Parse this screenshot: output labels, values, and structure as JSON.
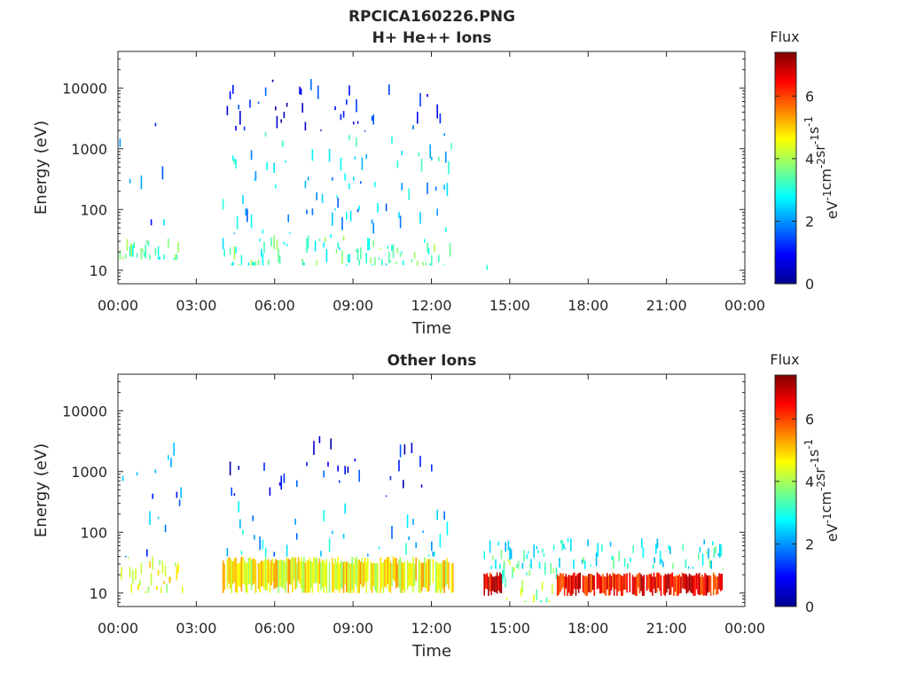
{
  "figure_title": "RPCICA160226.PNG",
  "chart_data": [
    {
      "type": "heatmap",
      "title": "H+ He++ Ions",
      "xlabel": "Time",
      "ylabel": "Energy (eV)",
      "x_ticks": [
        "00:00",
        "03:00",
        "06:00",
        "09:00",
        "12:00",
        "15:00",
        "18:00",
        "21:00",
        "00:00"
      ],
      "x_range_hours": [
        0,
        24
      ],
      "y_scale": "log",
      "y_ticks": [
        "10",
        "100",
        "1000",
        "10000"
      ],
      "y_range_eV": [
        6,
        40000
      ],
      "colorbar": {
        "title": "Flux",
        "unit_label": "eV-1cm-2sr-1s-1",
        "ticks": [
          "0",
          "2",
          "4",
          "6"
        ],
        "range": [
          0,
          7.4
        ],
        "colormap": "jet"
      },
      "grid": false,
      "coverage_hours": [
        [
          0,
          2.5
        ],
        [
          4.0,
          12.85
        ],
        [
          14.05,
          14.15
        ]
      ],
      "features": [
        {
          "t_range_hours": [
            0,
            2.5
          ],
          "e_range_eV": [
            15,
            40
          ],
          "mean_flux": 3.4
        },
        {
          "t_range_hours": [
            0,
            2.5
          ],
          "e_range_eV": [
            40,
            5000
          ],
          "mean_flux": 1.8
        },
        {
          "t_range_hours": [
            4.0,
            12.85
          ],
          "e_range_eV": [
            12,
            40
          ],
          "mean_flux": 3.3
        },
        {
          "t_range_hours": [
            4.0,
            12.85
          ],
          "e_range_eV": [
            40,
            300
          ],
          "mean_flux": 2.3
        },
        {
          "t_range_hours": [
            4.0,
            12.85
          ],
          "e_range_eV": [
            300,
            2000
          ],
          "mean_flux": 2.6
        },
        {
          "t_range_hours": [
            4.0,
            12.85
          ],
          "e_range_eV": [
            2000,
            15000
          ],
          "mean_flux": 1.0
        },
        {
          "t_range_hours": [
            14.05,
            14.15
          ],
          "e_range_eV": [
            8,
            25
          ],
          "mean_flux": 3.0
        }
      ]
    },
    {
      "type": "heatmap",
      "title": "Other Ions",
      "xlabel": "Time",
      "ylabel": "Energy (eV)",
      "x_ticks": [
        "00:00",
        "03:00",
        "06:00",
        "09:00",
        "12:00",
        "15:00",
        "18:00",
        "21:00",
        "00:00"
      ],
      "x_range_hours": [
        0,
        24
      ],
      "y_scale": "log",
      "y_ticks": [
        "10",
        "100",
        "1000",
        "10000"
      ],
      "y_range_eV": [
        6,
        40000
      ],
      "colorbar": {
        "title": "Flux",
        "unit_label": "eV-1cm-2sr-1s-1",
        "ticks": [
          "0",
          "2",
          "4",
          "6"
        ],
        "range": [
          0,
          7.4
        ],
        "colormap": "jet"
      },
      "grid": false,
      "coverage_hours": [
        [
          0,
          2.5
        ],
        [
          4.0,
          12.85
        ],
        [
          14.0,
          23.15
        ]
      ],
      "features": [
        {
          "t_range_hours": [
            0,
            2.5
          ],
          "e_range_eV": [
            10,
            40
          ],
          "mean_flux": 4.5
        },
        {
          "t_range_hours": [
            0,
            2.5
          ],
          "e_range_eV": [
            40,
            3000
          ],
          "mean_flux": 1.8
        },
        {
          "t_range_hours": [
            4.0,
            12.85
          ],
          "e_range_eV": [
            10,
            40
          ],
          "mean_flux": 4.6
        },
        {
          "t_range_hours": [
            4.0,
            12.85
          ],
          "e_range_eV": [
            40,
            400
          ],
          "mean_flux": 2.3
        },
        {
          "t_range_hours": [
            4.0,
            12.85
          ],
          "e_range_eV": [
            400,
            4000
          ],
          "mean_flux": 1.0
        },
        {
          "t_range_hours": [
            14.0,
            14.7
          ],
          "e_range_eV": [
            9,
            22
          ],
          "mean_flux": 6.5
        },
        {
          "t_range_hours": [
            14.7,
            16.8
          ],
          "e_range_eV": [
            7,
            40
          ],
          "mean_flux": 3.8
        },
        {
          "t_range_hours": [
            16.8,
            23.15
          ],
          "e_range_eV": [
            9,
            22
          ],
          "mean_flux": 6.4
        },
        {
          "t_range_hours": [
            14.0,
            23.15
          ],
          "e_range_eV": [
            25,
            80
          ],
          "mean_flux": 3.0
        }
      ]
    }
  ]
}
